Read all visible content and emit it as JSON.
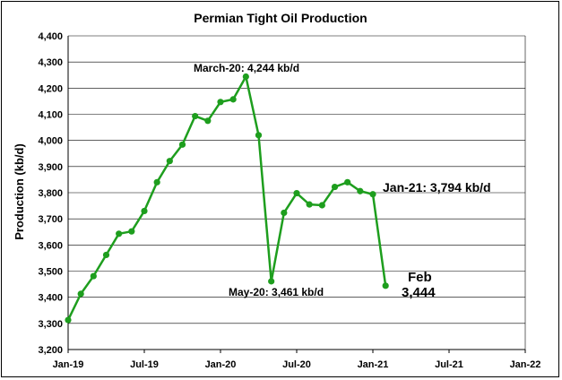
{
  "chart_data": {
    "type": "line",
    "title": "Permian Tight Oil Production",
    "ylabel": "Production (kb/d)",
    "xlabel": "",
    "ylim": [
      3200,
      4400
    ],
    "yticks": [
      "3,200",
      "3,300",
      "3,400",
      "3,500",
      "3,600",
      "3,700",
      "3,800",
      "3,900",
      "4,000",
      "4,100",
      "4,200",
      "4,300",
      "4,400"
    ],
    "xtick_labels": [
      "Jan-19",
      "Jul-19",
      "Jan-20",
      "Jul-20",
      "Jan-21",
      "Jul-21",
      "Jan-22"
    ],
    "grid": true,
    "color": "#1e9e1e",
    "x": [
      "2019-01",
      "2019-02",
      "2019-03",
      "2019-04",
      "2019-05",
      "2019-06",
      "2019-07",
      "2019-08",
      "2019-09",
      "2019-10",
      "2019-11",
      "2019-12",
      "2020-01",
      "2020-02",
      "2020-03",
      "2020-04",
      "2020-05",
      "2020-06",
      "2020-07",
      "2020-08",
      "2020-09",
      "2020-10",
      "2020-11",
      "2020-12",
      "2021-01",
      "2021-02"
    ],
    "values": [
      3313,
      3413,
      3481,
      3562,
      3643,
      3652,
      3730,
      3840,
      3921,
      3984,
      4093,
      4075,
      4147,
      4157,
      4244,
      4020,
      3461,
      3723,
      3798,
      3755,
      3752,
      3822,
      3840,
      3806,
      3794,
      3444
    ],
    "annotations": [
      {
        "text": "March-20: 4,244 kb/d"
      },
      {
        "text": "May-20: 3,461 kb/d"
      },
      {
        "text": "Jan-21: 3,794 kb/d"
      },
      {
        "text": "Feb"
      },
      {
        "text": "3,444"
      }
    ]
  }
}
